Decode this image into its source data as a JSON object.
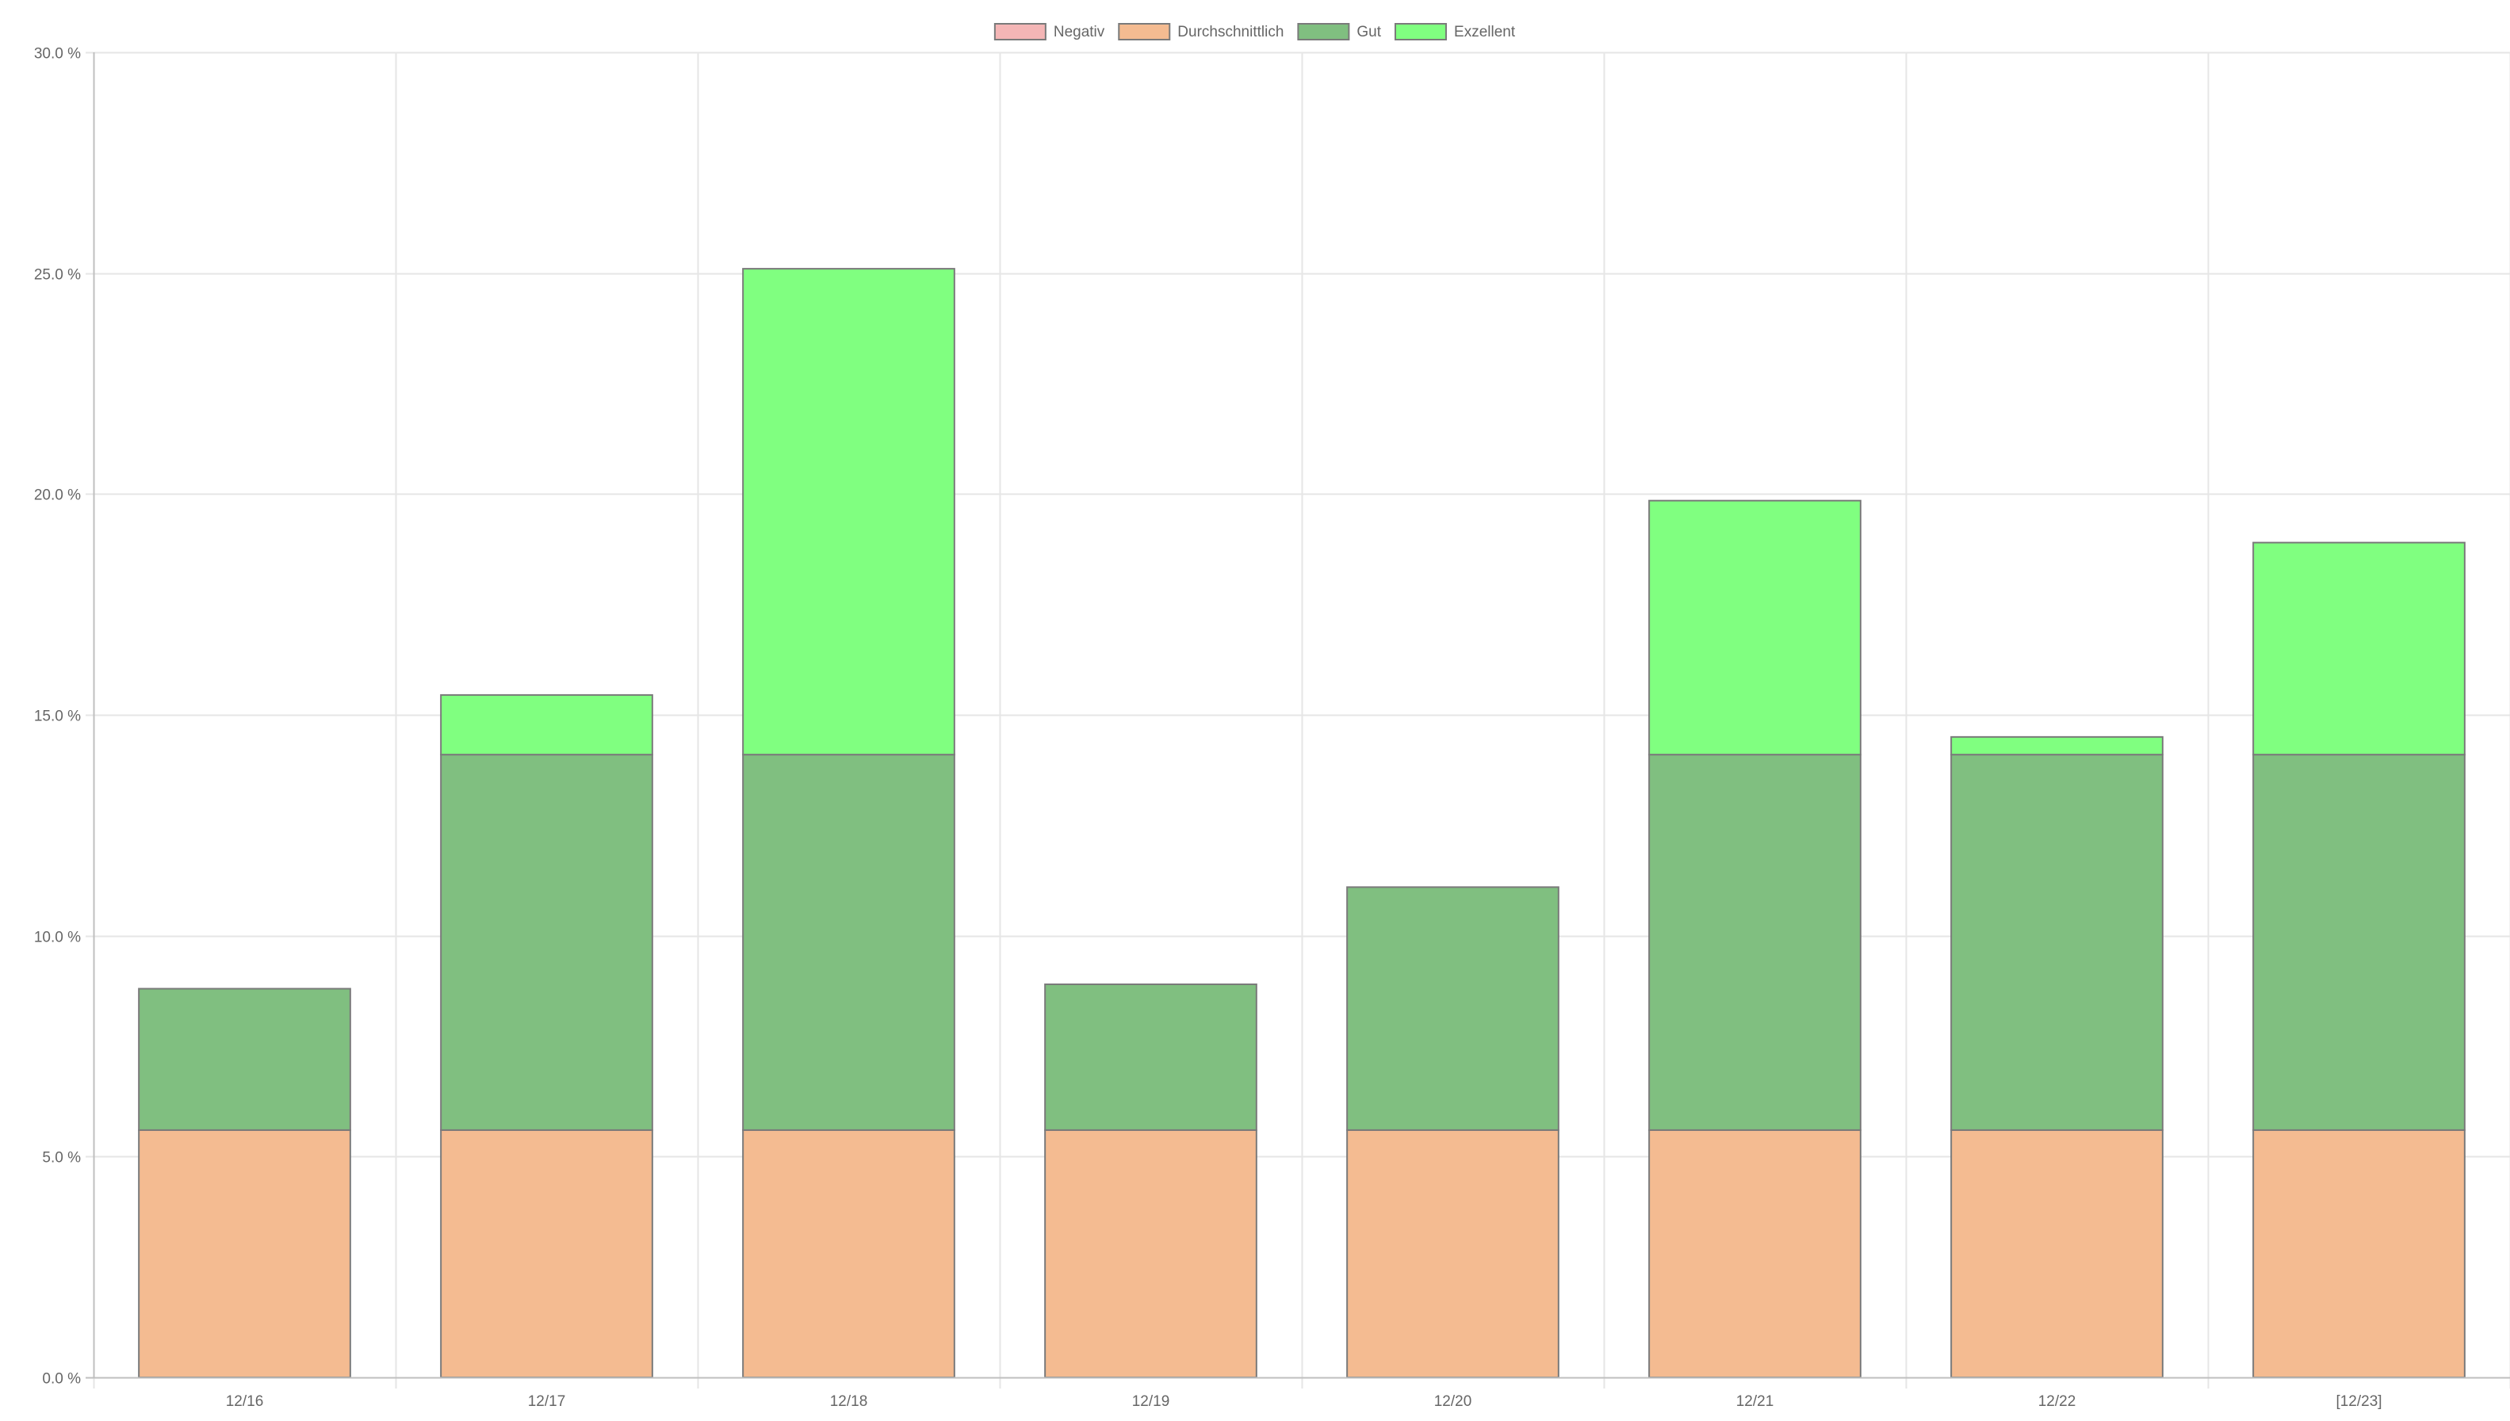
{
  "chart_data": {
    "type": "bar",
    "stacked": true,
    "categories": [
      "12/16",
      "12/17",
      "12/18",
      "12/19",
      "12/20",
      "12/21",
      "12/22",
      "[12/23]"
    ],
    "series": [
      {
        "name": "Negativ",
        "color": "#f4b6b6",
        "values": [
          0,
          0,
          0,
          0,
          0,
          0,
          0,
          0
        ]
      },
      {
        "name": "Durchschnittlich",
        "color": "#f4bb91",
        "values": [
          5.6,
          5.6,
          5.6,
          5.6,
          5.6,
          5.6,
          5.6,
          5.6
        ]
      },
      {
        "name": "Gut",
        "color": "#80bf80",
        "values": [
          3.2,
          8.5,
          8.5,
          3.3,
          5.5,
          8.5,
          8.5,
          8.5
        ]
      },
      {
        "name": "Exzellent",
        "color": "#80ff80",
        "values": [
          0,
          1.35,
          11.0,
          0,
          0,
          5.75,
          0.4,
          4.8
        ]
      }
    ],
    "ylim": [
      0,
      30
    ],
    "yticks": [
      "0.0 %",
      "5.0 %",
      "10.0 %",
      "15.0 %",
      "20.0 %",
      "25.0 %",
      "30.0 %"
    ],
    "ytick_values": [
      0,
      5,
      10,
      15,
      20,
      25,
      30
    ],
    "grid": true,
    "legend_position": "top-center",
    "colors": {
      "grid": "#e6e6e6",
      "axis": "#bfbfbf",
      "bar_border": "#7a7a7a",
      "text": "#666666"
    }
  }
}
